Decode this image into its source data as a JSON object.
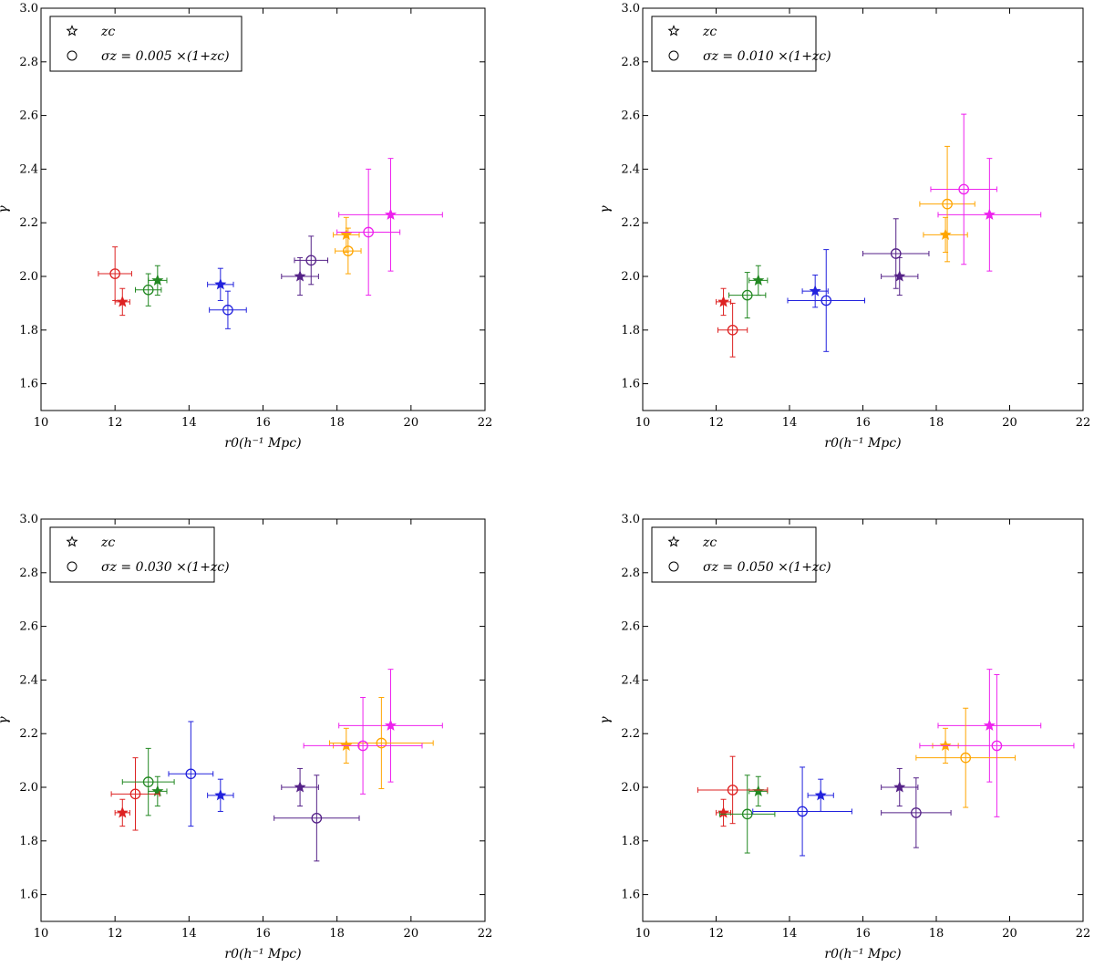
{
  "chart_data": [
    {
      "type": "scatter",
      "title": "",
      "xlabel": "r0(h⁻¹ Mpc)",
      "ylabel": "γ",
      "xlim": [
        10,
        22
      ],
      "ylim": [
        1.5,
        3.0
      ],
      "xticks": [
        "10",
        "12",
        "14",
        "16",
        "18",
        "20",
        "22"
      ],
      "yticks": [
        "1.6",
        "1.8",
        "2.0",
        "2.2",
        "2.4",
        "2.6",
        "2.8",
        "3.0"
      ],
      "grid": false,
      "legend_position": "top-left",
      "legend": [
        {
          "marker": "star",
          "label": "zc"
        },
        {
          "marker": "circle",
          "label": "σz = 0.005 ×(1+zc)"
        }
      ],
      "series": [
        {
          "marker": "star",
          "points": [
            {
              "x": 12.2,
              "y": 1.905,
              "xerr": 0.2,
              "yerr": 0.05,
              "color": "#dd2222"
            },
            {
              "x": 13.15,
              "y": 1.985,
              "xerr": 0.25,
              "yerr": 0.055,
              "color": "#228822"
            },
            {
              "x": 14.85,
              "y": 1.97,
              "xerr": 0.35,
              "yerr": 0.06,
              "color": "#2222dd"
            },
            {
              "x": 17.0,
              "y": 2.0,
              "xerr": 0.5,
              "yerr": 0.07,
              "color": "#552288"
            },
            {
              "x": 18.25,
              "y": 2.155,
              "xerr": 0.35,
              "yerr": 0.065,
              "color": "#ffa500"
            },
            {
              "x": 19.45,
              "y": 2.23,
              "xerr": 1.4,
              "yerr": 0.21,
              "color": "#ee22ee"
            }
          ]
        },
        {
          "marker": "circle",
          "points": [
            {
              "x": 12.0,
              "y": 2.01,
              "xerr": 0.45,
              "yerr": 0.1,
              "color": "#dd2222"
            },
            {
              "x": 12.9,
              "y": 1.95,
              "xerr": 0.35,
              "yerr": 0.06,
              "color": "#228822"
            },
            {
              "x": 15.05,
              "y": 1.875,
              "xerr": 0.5,
              "yerr": 0.07,
              "color": "#2222dd"
            },
            {
              "x": 17.3,
              "y": 2.06,
              "xerr": 0.45,
              "yerr": 0.09,
              "color": "#552288"
            },
            {
              "x": 18.3,
              "y": 2.095,
              "xerr": 0.35,
              "yerr": 0.085,
              "color": "#ffa500"
            },
            {
              "x": 18.85,
              "y": 2.165,
              "xerr": 0.85,
              "yerr": 0.235,
              "color": "#ee22ee"
            }
          ]
        }
      ]
    },
    {
      "type": "scatter",
      "title": "",
      "xlabel": "r0(h⁻¹ Mpc)",
      "ylabel": "γ",
      "xlim": [
        10,
        22
      ],
      "ylim": [
        1.5,
        3.0
      ],
      "xticks": [
        "10",
        "12",
        "14",
        "16",
        "18",
        "20",
        "22"
      ],
      "yticks": [
        "1.6",
        "1.8",
        "2.0",
        "2.2",
        "2.4",
        "2.6",
        "2.8",
        "3.0"
      ],
      "grid": false,
      "legend_position": "top-left",
      "legend": [
        {
          "marker": "star",
          "label": "zc"
        },
        {
          "marker": "circle",
          "label": "σz = 0.010 ×(1+zc)"
        }
      ],
      "series": [
        {
          "marker": "star",
          "points": [
            {
              "x": 12.2,
              "y": 1.905,
              "xerr": 0.2,
              "yerr": 0.05,
              "color": "#dd2222"
            },
            {
              "x": 13.15,
              "y": 1.985,
              "xerr": 0.25,
              "yerr": 0.055,
              "color": "#228822"
            },
            {
              "x": 14.7,
              "y": 1.945,
              "xerr": 0.35,
              "yerr": 0.06,
              "color": "#2222dd"
            },
            {
              "x": 17.0,
              "y": 2.0,
              "xerr": 0.5,
              "yerr": 0.07,
              "color": "#552288"
            },
            {
              "x": 18.25,
              "y": 2.155,
              "xerr": 0.6,
              "yerr": 0.065,
              "color": "#ffa500"
            },
            {
              "x": 19.45,
              "y": 2.23,
              "xerr": 1.4,
              "yerr": 0.21,
              "color": "#ee22ee"
            }
          ]
        },
        {
          "marker": "circle",
          "points": [
            {
              "x": 12.45,
              "y": 1.8,
              "xerr": 0.4,
              "yerr": 0.1,
              "color": "#dd2222"
            },
            {
              "x": 12.85,
              "y": 1.93,
              "xerr": 0.5,
              "yerr": 0.085,
              "color": "#228822"
            },
            {
              "x": 15.0,
              "y": 1.91,
              "xerr": 1.05,
              "yerr": 0.19,
              "color": "#2222dd"
            },
            {
              "x": 16.9,
              "y": 2.085,
              "xerr": 0.9,
              "yerr": 0.13,
              "color": "#552288"
            },
            {
              "x": 18.3,
              "y": 2.27,
              "xerr": 0.75,
              "yerr": 0.215,
              "color": "#ffa500"
            },
            {
              "x": 18.75,
              "y": 2.325,
              "xerr": 0.9,
              "yerr": 0.28,
              "color": "#ee22ee"
            }
          ]
        }
      ]
    },
    {
      "type": "scatter",
      "title": "",
      "xlabel": "r0(h⁻¹ Mpc)",
      "ylabel": "γ",
      "xlim": [
        10,
        22
      ],
      "ylim": [
        1.5,
        3.0
      ],
      "xticks": [
        "10",
        "12",
        "14",
        "16",
        "18",
        "20",
        "22"
      ],
      "yticks": [
        "1.6",
        "1.8",
        "2.0",
        "2.2",
        "2.4",
        "2.6",
        "2.8",
        "3.0"
      ],
      "grid": false,
      "legend_position": "top-left",
      "legend": [
        {
          "marker": "star",
          "label": "zc"
        },
        {
          "marker": "circle",
          "label": "σz = 0.030 ×(1+zc)"
        }
      ],
      "series": [
        {
          "marker": "star",
          "points": [
            {
              "x": 12.2,
              "y": 1.905,
              "xerr": 0.2,
              "yerr": 0.05,
              "color": "#dd2222"
            },
            {
              "x": 13.15,
              "y": 1.985,
              "xerr": 0.25,
              "yerr": 0.055,
              "color": "#228822"
            },
            {
              "x": 14.85,
              "y": 1.97,
              "xerr": 0.35,
              "yerr": 0.06,
              "color": "#2222dd"
            },
            {
              "x": 17.0,
              "y": 2.0,
              "xerr": 0.5,
              "yerr": 0.07,
              "color": "#552288"
            },
            {
              "x": 18.25,
              "y": 2.155,
              "xerr": 0.35,
              "yerr": 0.065,
              "color": "#ffa500"
            },
            {
              "x": 19.45,
              "y": 2.23,
              "xerr": 1.4,
              "yerr": 0.21,
              "color": "#ee22ee"
            }
          ]
        },
        {
          "marker": "circle",
          "points": [
            {
              "x": 12.55,
              "y": 1.975,
              "xerr": 0.65,
              "yerr": 0.135,
              "color": "#dd2222"
            },
            {
              "x": 12.9,
              "y": 2.02,
              "xerr": 0.7,
              "yerr": 0.125,
              "color": "#228822"
            },
            {
              "x": 14.05,
              "y": 2.05,
              "xerr": 0.6,
              "yerr": 0.195,
              "color": "#2222dd"
            },
            {
              "x": 17.45,
              "y": 1.885,
              "xerr": 1.15,
              "yerr": 0.16,
              "color": "#552288"
            },
            {
              "x": 19.2,
              "y": 2.165,
              "xerr": 1.4,
              "yerr": 0.17,
              "color": "#ffa500"
            },
            {
              "x": 18.7,
              "y": 2.155,
              "xerr": 1.6,
              "yerr": 0.18,
              "color": "#ee22ee"
            }
          ]
        }
      ]
    },
    {
      "type": "scatter",
      "title": "",
      "xlabel": "r0(h⁻¹ Mpc)",
      "ylabel": "γ",
      "xlim": [
        10,
        22
      ],
      "ylim": [
        1.5,
        3.0
      ],
      "xticks": [
        "10",
        "12",
        "14",
        "16",
        "18",
        "20",
        "22"
      ],
      "yticks": [
        "1.6",
        "1.8",
        "2.0",
        "2.2",
        "2.4",
        "2.6",
        "2.8",
        "3.0"
      ],
      "grid": false,
      "legend_position": "top-left",
      "legend": [
        {
          "marker": "star",
          "label": "zc"
        },
        {
          "marker": "circle",
          "label": "σz = 0.050 ×(1+zc)"
        }
      ],
      "series": [
        {
          "marker": "star",
          "points": [
            {
              "x": 12.2,
              "y": 1.905,
              "xerr": 0.2,
              "yerr": 0.05,
              "color": "#dd2222"
            },
            {
              "x": 13.15,
              "y": 1.985,
              "xerr": 0.25,
              "yerr": 0.055,
              "color": "#228822"
            },
            {
              "x": 14.85,
              "y": 1.97,
              "xerr": 0.35,
              "yerr": 0.06,
              "color": "#2222dd"
            },
            {
              "x": 17.0,
              "y": 2.0,
              "xerr": 0.5,
              "yerr": 0.07,
              "color": "#552288"
            },
            {
              "x": 18.25,
              "y": 2.155,
              "xerr": 0.35,
              "yerr": 0.065,
              "color": "#ffa500"
            },
            {
              "x": 19.45,
              "y": 2.23,
              "xerr": 1.4,
              "yerr": 0.21,
              "color": "#ee22ee"
            }
          ]
        },
        {
          "marker": "circle",
          "points": [
            {
              "x": 12.45,
              "y": 1.99,
              "xerr": 0.95,
              "yerr": 0.125,
              "color": "#dd2222"
            },
            {
              "x": 12.85,
              "y": 1.9,
              "xerr": 0.75,
              "yerr": 0.145,
              "color": "#228822"
            },
            {
              "x": 14.35,
              "y": 1.91,
              "xerr": 1.35,
              "yerr": 0.165,
              "color": "#2222dd"
            },
            {
              "x": 17.45,
              "y": 1.905,
              "xerr": 0.95,
              "yerr": 0.13,
              "color": "#552288"
            },
            {
              "x": 18.8,
              "y": 2.11,
              "xerr": 1.35,
              "yerr": 0.185,
              "color": "#ffa500"
            },
            {
              "x": 19.65,
              "y": 2.155,
              "xerr": 2.1,
              "yerr": 0.265,
              "color": "#ee22ee"
            }
          ]
        }
      ]
    }
  ]
}
